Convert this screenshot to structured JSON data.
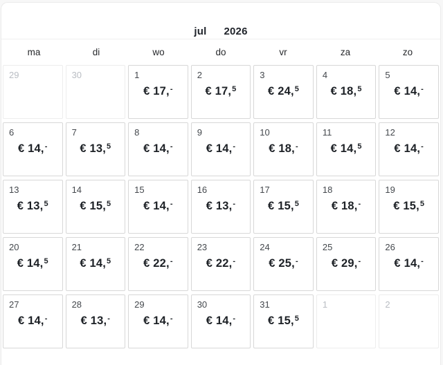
{
  "header": {
    "month": "jul",
    "year": "2026"
  },
  "weekdays": [
    "ma",
    "di",
    "wo",
    "do",
    "vr",
    "za",
    "zo"
  ],
  "currency_symbol": "€",
  "colors": {
    "price_text": "#1d2126",
    "day_number": "#44484d",
    "muted_day_number": "#b9bdc3",
    "active_cell_border": "#d7d7d7",
    "muted_cell_border": "#ededed",
    "card_border": "#ebebeb",
    "background": "#ffffff"
  },
  "weeks": [
    {
      "cells": [
        {
          "day": "29",
          "in_month": false,
          "price": null,
          "sup": null
        },
        {
          "day": "30",
          "in_month": false,
          "price": null,
          "sup": null
        },
        {
          "day": "1",
          "in_month": true,
          "price": "€ 17,",
          "sup": "-"
        },
        {
          "day": "2",
          "in_month": true,
          "price": "€ 17,",
          "sup": "5"
        },
        {
          "day": "3",
          "in_month": true,
          "price": "€ 24,",
          "sup": "5"
        },
        {
          "day": "4",
          "in_month": true,
          "price": "€ 18,",
          "sup": "5"
        },
        {
          "day": "5",
          "in_month": true,
          "price": "€ 14,",
          "sup": "-"
        }
      ]
    },
    {
      "cells": [
        {
          "day": "6",
          "in_month": true,
          "price": "€ 14,",
          "sup": "-"
        },
        {
          "day": "7",
          "in_month": true,
          "price": "€ 13,",
          "sup": "5"
        },
        {
          "day": "8",
          "in_month": true,
          "price": "€ 14,",
          "sup": "-"
        },
        {
          "day": "9",
          "in_month": true,
          "price": "€ 14,",
          "sup": "-"
        },
        {
          "day": "10",
          "in_month": true,
          "price": "€ 18,",
          "sup": "-"
        },
        {
          "day": "11",
          "in_month": true,
          "price": "€ 14,",
          "sup": "5"
        },
        {
          "day": "12",
          "in_month": true,
          "price": "€ 14,",
          "sup": "-"
        }
      ]
    },
    {
      "cells": [
        {
          "day": "13",
          "in_month": true,
          "price": "€ 13,",
          "sup": "5"
        },
        {
          "day": "14",
          "in_month": true,
          "price": "€ 15,",
          "sup": "5"
        },
        {
          "day": "15",
          "in_month": true,
          "price": "€ 14,",
          "sup": "-"
        },
        {
          "day": "16",
          "in_month": true,
          "price": "€ 13,",
          "sup": "-"
        },
        {
          "day": "17",
          "in_month": true,
          "price": "€ 15,",
          "sup": "5"
        },
        {
          "day": "18",
          "in_month": true,
          "price": "€ 18,",
          "sup": "-"
        },
        {
          "day": "19",
          "in_month": true,
          "price": "€ 15,",
          "sup": "5"
        }
      ]
    },
    {
      "cells": [
        {
          "day": "20",
          "in_month": true,
          "price": "€ 14,",
          "sup": "5"
        },
        {
          "day": "21",
          "in_month": true,
          "price": "€ 14,",
          "sup": "5"
        },
        {
          "day": "22",
          "in_month": true,
          "price": "€ 22,",
          "sup": "-"
        },
        {
          "day": "23",
          "in_month": true,
          "price": "€ 22,",
          "sup": "-"
        },
        {
          "day": "24",
          "in_month": true,
          "price": "€ 25,",
          "sup": "-"
        },
        {
          "day": "25",
          "in_month": true,
          "price": "€ 29,",
          "sup": "-"
        },
        {
          "day": "26",
          "in_month": true,
          "price": "€ 14,",
          "sup": "-"
        }
      ]
    },
    {
      "cells": [
        {
          "day": "27",
          "in_month": true,
          "price": "€ 14,",
          "sup": "-"
        },
        {
          "day": "28",
          "in_month": true,
          "price": "€ 13,",
          "sup": "-"
        },
        {
          "day": "29",
          "in_month": true,
          "price": "€ 14,",
          "sup": "-"
        },
        {
          "day": "30",
          "in_month": true,
          "price": "€ 14,",
          "sup": "-"
        },
        {
          "day": "31",
          "in_month": true,
          "price": "€ 15,",
          "sup": "5"
        },
        {
          "day": "1",
          "in_month": false,
          "price": null,
          "sup": null
        },
        {
          "day": "2",
          "in_month": false,
          "price": null,
          "sup": null
        }
      ]
    }
  ]
}
